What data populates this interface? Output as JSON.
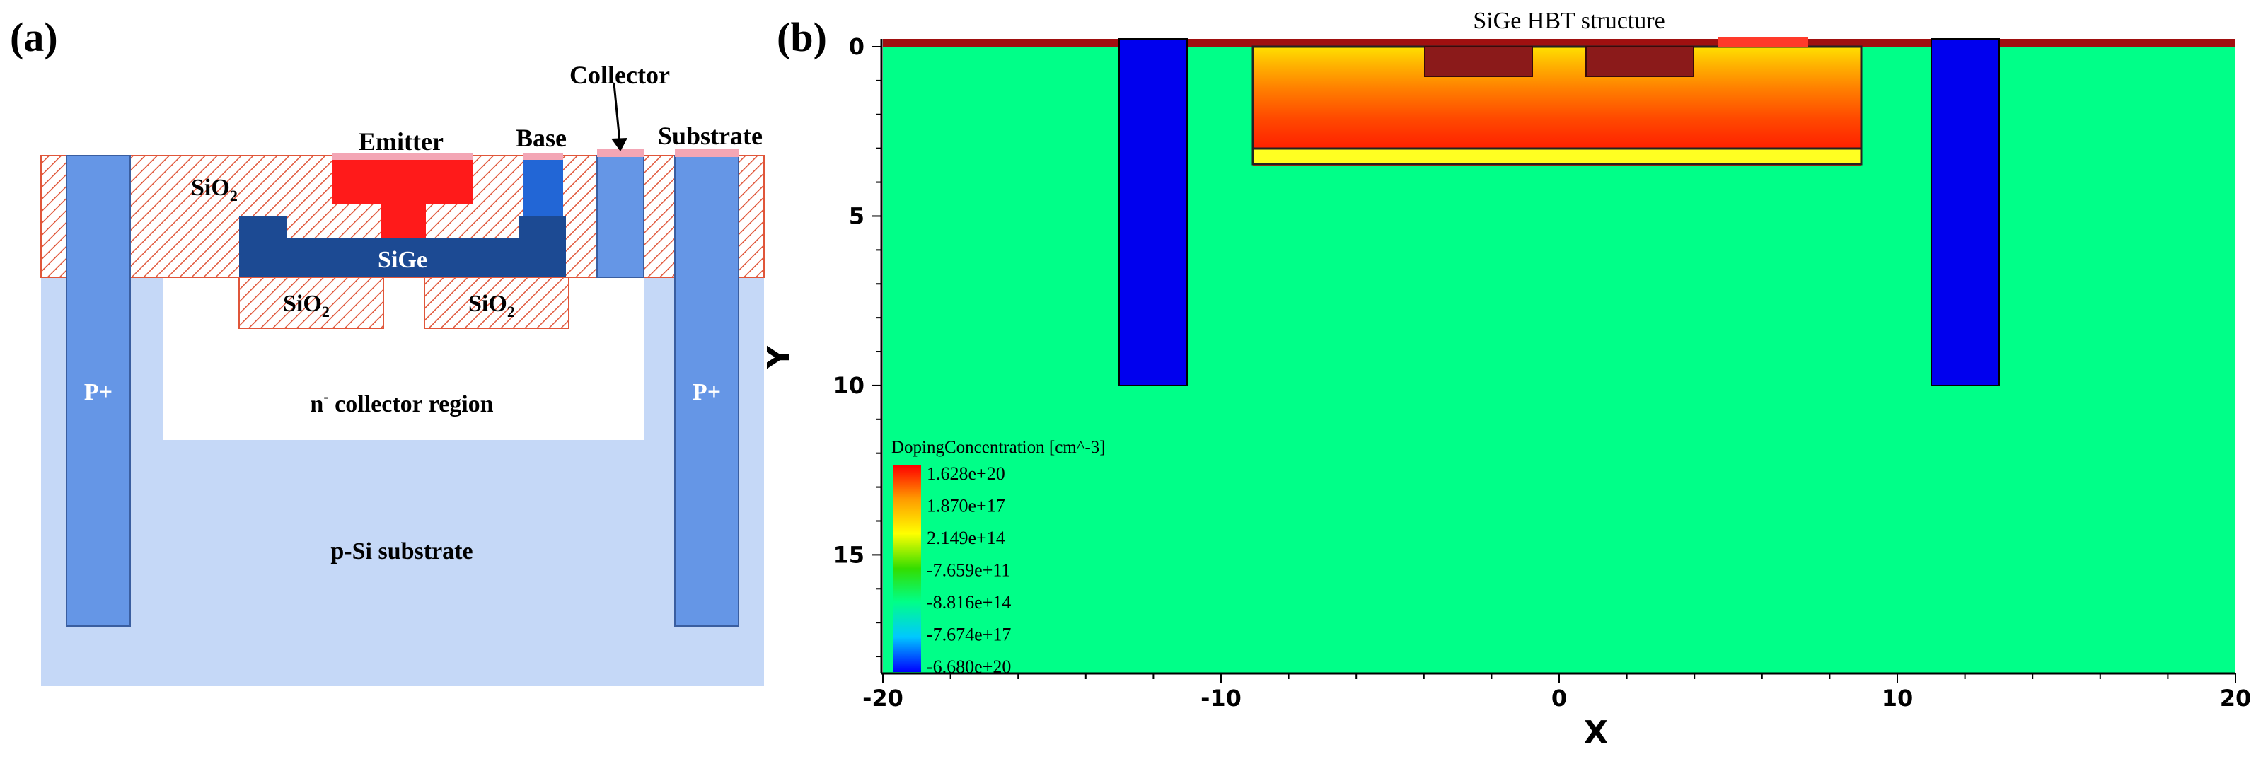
{
  "panel_a": {
    "label": "(a)",
    "labels": {
      "collector": "Collector",
      "emitter": "Emitter",
      "base": "Base",
      "substrate": "Substrate",
      "sio2_top": "SiO",
      "sio2_left": "SiO",
      "sio2_right": "SiO",
      "sub2": "2",
      "sige": "SiGe",
      "p_plus_left": "P+",
      "p_plus_right": "P+",
      "collector_region_pre": "n",
      "collector_region_sup": "-",
      "collector_region_post": " collector region",
      "p_substrate": "p-Si substrate"
    },
    "colors": {
      "substrate": "#c5d8f7",
      "p_plus": "#6596e6",
      "collector_region": "#ffffff",
      "oxide_hatch": "#e0563a",
      "sige": "#1c4a93",
      "emitter": "#ff1a1a",
      "base_contact": "#2266d6",
      "pad": "#f3a6b5"
    }
  },
  "panel_b": {
    "label": "(b)",
    "title": "SiGe HBT structure",
    "xlabel": "X",
    "ylabel": "Y",
    "x_ticks": [
      "-20",
      "-10",
      "0",
      "10",
      "20"
    ],
    "y_ticks": [
      "0",
      "5",
      "10",
      "15"
    ],
    "legend": {
      "title": "DopingConcentration [cm^-3]",
      "entries": [
        "1.628e+20",
        "1.870e+17",
        "2.149e+14",
        "-7.659e+11",
        "-8.816e+14",
        "-7.674e+17",
        "-6.680e+20"
      ],
      "colors": [
        "#ff0000",
        "#ff9900",
        "#ffff00",
        "#33dd00",
        "#00ff88",
        "#00c8ff",
        "#0000ff"
      ]
    },
    "colors": {
      "background": "#00ff88",
      "p_plus": "#0000ee",
      "top_layer": "#a01010",
      "contact": "#8b1a1a",
      "device_stops": [
        "#ffd000",
        "#ffb000",
        "#ff8a00",
        "#ff6a00",
        "#ff4a00",
        "#ff2a00"
      ],
      "device_bottom": "#ffff22"
    }
  },
  "chart_data": {
    "type": "heatmap",
    "title": "SiGe HBT structure",
    "xlabel": "X",
    "ylabel": "Y",
    "xlim": [
      -20,
      20
    ],
    "ylim": [
      18.5,
      0
    ],
    "x_ticks": [
      -20,
      -10,
      0,
      10,
      20
    ],
    "y_ticks": [
      0,
      5,
      10,
      15
    ],
    "colorbar": {
      "label": "DopingConcentration [cm^-3]",
      "values": [
        1.628e+20,
        1.87e+17,
        214900000000000.0,
        -765900000000.0,
        -881600000000000.0,
        -7.674e+17,
        -6.68e+20
      ]
    },
    "regions": [
      {
        "name": "p-plus-left",
        "x": [
          -13,
          -11
        ],
        "y": [
          0,
          10
        ]
      },
      {
        "name": "p-plus-right",
        "x": [
          11,
          13
        ],
        "y": [
          0,
          10
        ]
      },
      {
        "name": "device-core",
        "x": [
          -9,
          9
        ],
        "y": [
          0,
          3.4
        ]
      },
      {
        "name": "contact-left",
        "x": [
          -4,
          -0.8
        ],
        "y": [
          0,
          0.85
        ]
      },
      {
        "name": "contact-right",
        "x": [
          0.8,
          4
        ],
        "y": [
          0,
          0.85
        ]
      }
    ]
  }
}
